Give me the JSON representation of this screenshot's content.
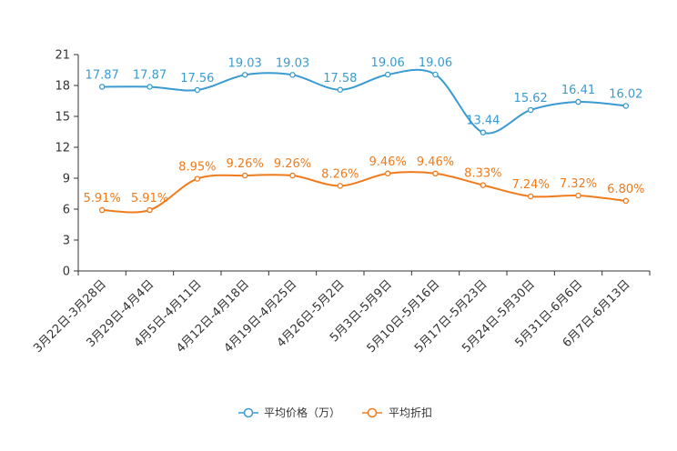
{
  "chart_data": {
    "type": "line",
    "title": "",
    "xlabel": "",
    "ylabel": "",
    "ylim": [
      0,
      21
    ],
    "yticks": [
      0,
      3,
      6,
      9,
      12,
      15,
      18,
      21
    ],
    "grid": false,
    "legend_position": "bottom-center",
    "categories": [
      "3月22日-3月28日",
      "3月29日-4月4日",
      "4月5日-4月11日",
      "4月12日-4月18日",
      "4月19日-4月25日",
      "4月26日-5月2日",
      "5月3日-5月9日",
      "5月10日-5月16日",
      "5月17日-5月23日",
      "5月24日-5月30日",
      "5月31日-6月6日",
      "6月7日-6月13日"
    ],
    "series": [
      {
        "name": "平均价格（万）",
        "color": "#3a9bd0",
        "values": [
          17.87,
          17.87,
          17.56,
          19.03,
          19.03,
          17.58,
          19.06,
          19.06,
          13.44,
          15.62,
          16.41,
          16.02
        ],
        "labels": [
          "17.87",
          "17.87",
          "17.56",
          "19.03",
          "19.03",
          "17.58",
          "19.06",
          "19.06",
          "13.44",
          "15.62",
          "16.41",
          "16.02"
        ]
      },
      {
        "name": "平均折扣",
        "color": "#f07b1d",
        "values": [
          5.91,
          5.91,
          8.95,
          9.26,
          9.26,
          8.26,
          9.46,
          9.46,
          8.33,
          7.24,
          7.32,
          6.8
        ],
        "labels": [
          "5.91%",
          "5.91%",
          "8.95%",
          "9.26%",
          "9.26%",
          "8.26%",
          "9.46%",
          "9.46%",
          "8.33%",
          "7.24%",
          "7.32%",
          "6.80%"
        ]
      }
    ]
  }
}
